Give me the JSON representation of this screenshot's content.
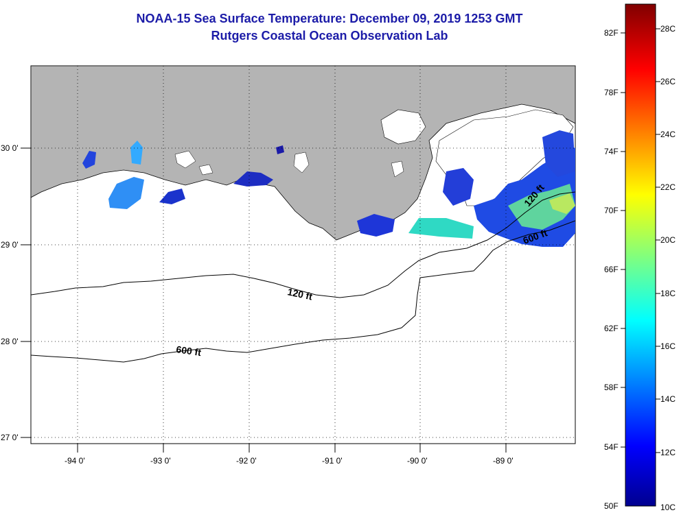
{
  "header": {
    "title_line1": "NOAA-15 Sea Surface Temperature:  December 09, 2019 1253 GMT",
    "title_line2": "Rutgers Coastal Ocean Observation Lab"
  },
  "map": {
    "land_color": "#b4b4b4",
    "lon_labels": [
      "-94 0'",
      "-93 0'",
      "-92 0'",
      "-91 0'",
      "-90 0'",
      "-89 0'"
    ],
    "lat_labels": [
      "30 0'",
      "29 0'",
      "28 0'",
      "27 0'"
    ],
    "contour_labels": [
      "120 ft",
      "600 ft",
      "120 ft",
      "600 ft"
    ]
  },
  "colorbar": {
    "fahrenheit_labels": [
      "82F",
      "78F",
      "74F",
      "70F",
      "66F",
      "62F",
      "58F",
      "54F",
      "50F"
    ],
    "celsius_labels": [
      "28C",
      "26C",
      "24C",
      "22C",
      "20C",
      "18C",
      "16C",
      "14C",
      "12C",
      "10C"
    ]
  }
}
